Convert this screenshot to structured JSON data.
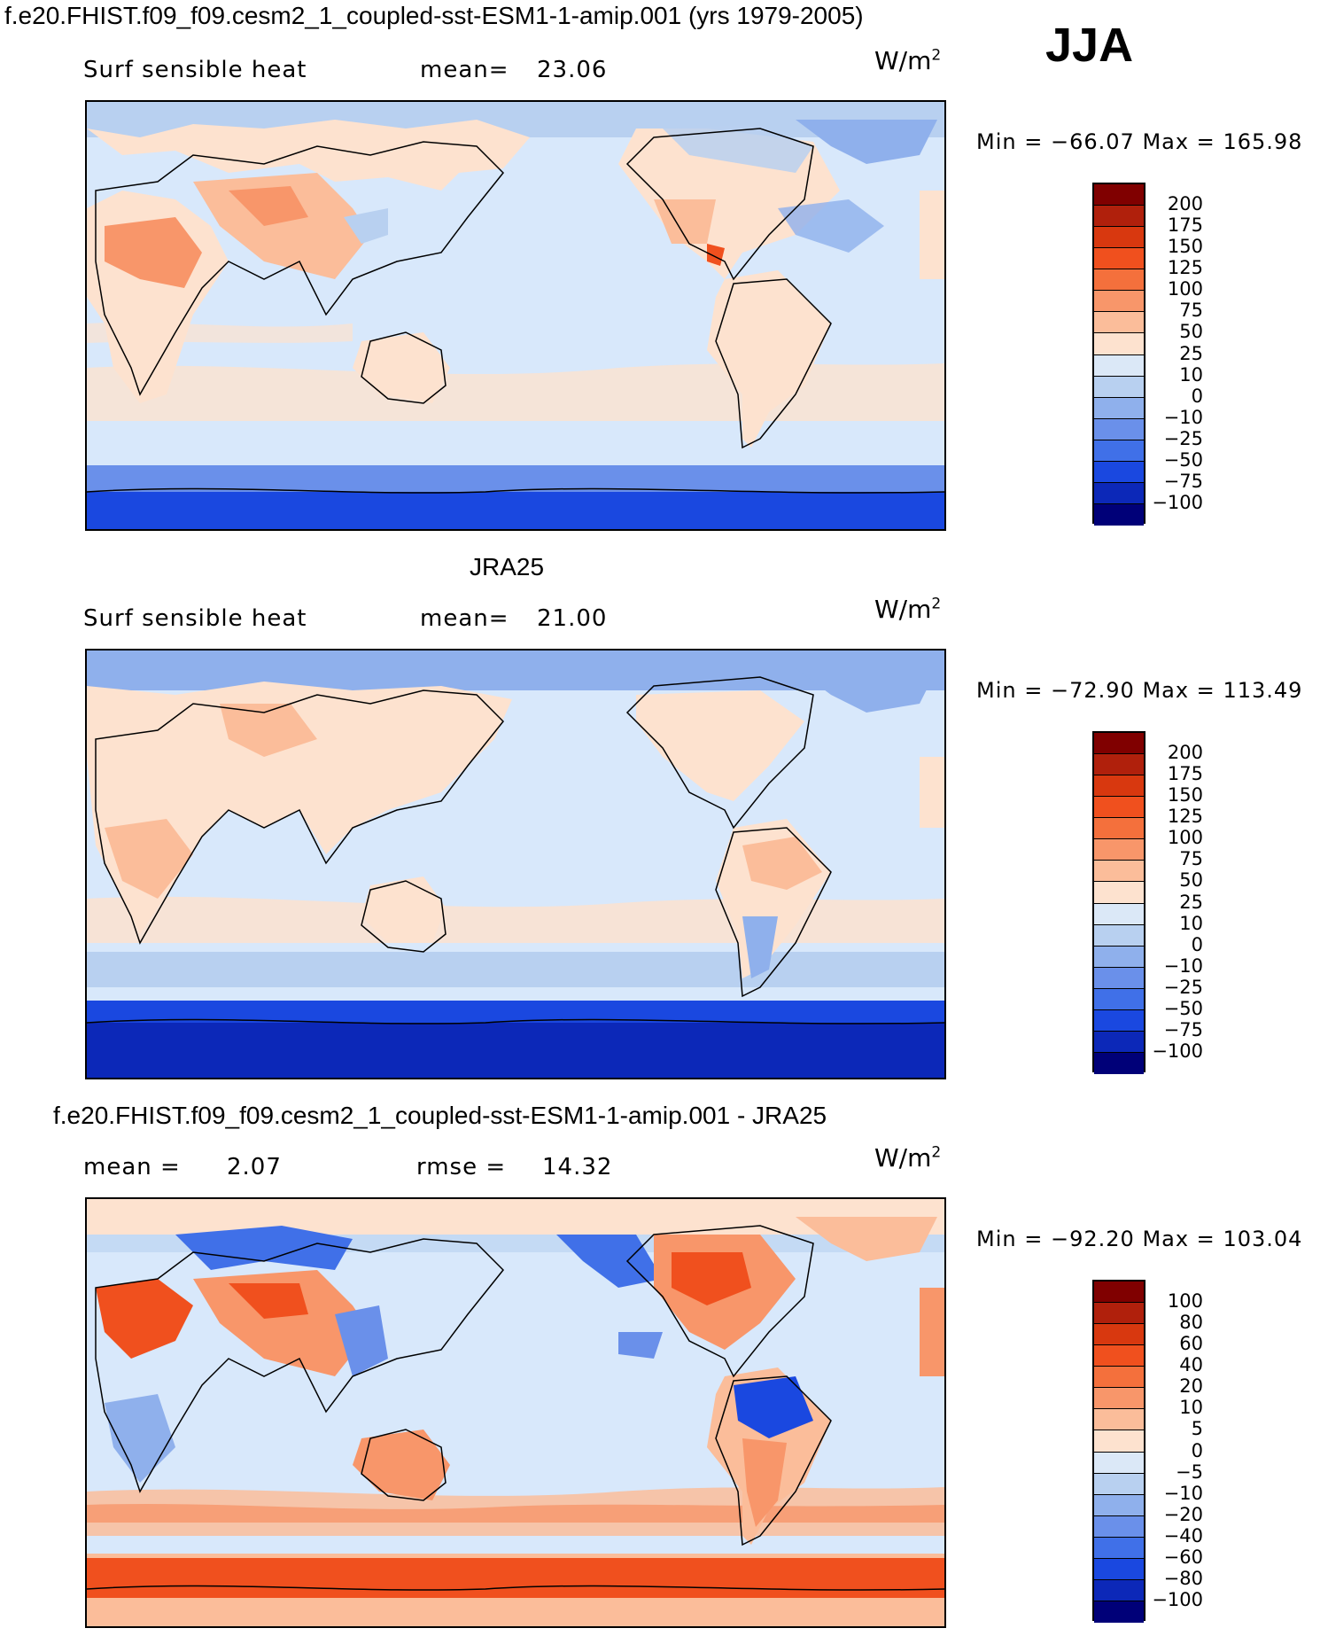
{
  "header": {
    "main_title": "f.e20.FHIST.f09_f09.cesm2_1_coupled-sst-ESM1-1-amip.001 (yrs 1979-2005)",
    "season": "JJA"
  },
  "panels": [
    {
      "title": "",
      "left_label": "Surf  sensible  heat",
      "stat1_label": "mean=",
      "stat1_value": "23.06",
      "stat2_label": "",
      "stat2_value": "",
      "units_base": "W/m",
      "units_exp": "2",
      "min_label": "Min  =",
      "min_value": "−66.07",
      "max_label": "Max  =",
      "max_value": "165.98",
      "colorbar_labels": [
        "200",
        "175",
        "150",
        "125",
        "100",
        "75",
        "50",
        "25",
        "10",
        "0",
        "−10",
        "−25",
        "−50",
        "−75",
        "−100"
      ]
    },
    {
      "title": "JRA25",
      "left_label": "Surf  sensible  heat",
      "stat1_label": "mean=",
      "stat1_value": "21.00",
      "stat2_label": "",
      "stat2_value": "",
      "units_base": "W/m",
      "units_exp": "2",
      "min_label": "Min  =",
      "min_value": "−72.90",
      "max_label": "Max  =",
      "max_value": "113.49",
      "colorbar_labels": [
        "200",
        "175",
        "150",
        "125",
        "100",
        "75",
        "50",
        "25",
        "10",
        "0",
        "−10",
        "−25",
        "−50",
        "−75",
        "−100"
      ]
    },
    {
      "title": "f.e20.FHIST.f09_f09.cesm2_1_coupled-sst-ESM1-1-amip.001 - JRA25",
      "left_label": "mean  =",
      "stat1_label": "",
      "stat1_value": "2.07",
      "stat2_label": "rmse  =",
      "stat2_value": "14.32",
      "units_base": "W/m",
      "units_exp": "2",
      "min_label": "Min  =",
      "min_value": "−92.20",
      "max_label": "Max  =",
      "max_value": "103.04",
      "colorbar_labels": [
        "100",
        "80",
        "60",
        "40",
        "20",
        "10",
        "5",
        "0",
        "−5",
        "−10",
        "−20",
        "−40",
        "−60",
        "−80",
        "−100"
      ]
    }
  ],
  "colorbar_colors": [
    "#800000",
    "#b0200c",
    "#d8380f",
    "#f0501e",
    "#f4703c",
    "#f8966a",
    "#fbbd9a",
    "#fde2cf",
    "#dbe8f7",
    "#b8d0f0",
    "#8fb0ec",
    "#6a90ea",
    "#4070e8",
    "#1a48e0",
    "#0c28b8",
    "#000078"
  ],
  "map_colors": {
    "ocean_mid": "#d8e8fb",
    "ocean_pale": "#fde2cf",
    "polar": "#1a48e0",
    "antarctic": "#0c28b8",
    "land_warm": "#f8966a",
    "land_hot": "#f0501e",
    "land_cool": "#8fb0ec"
  }
}
